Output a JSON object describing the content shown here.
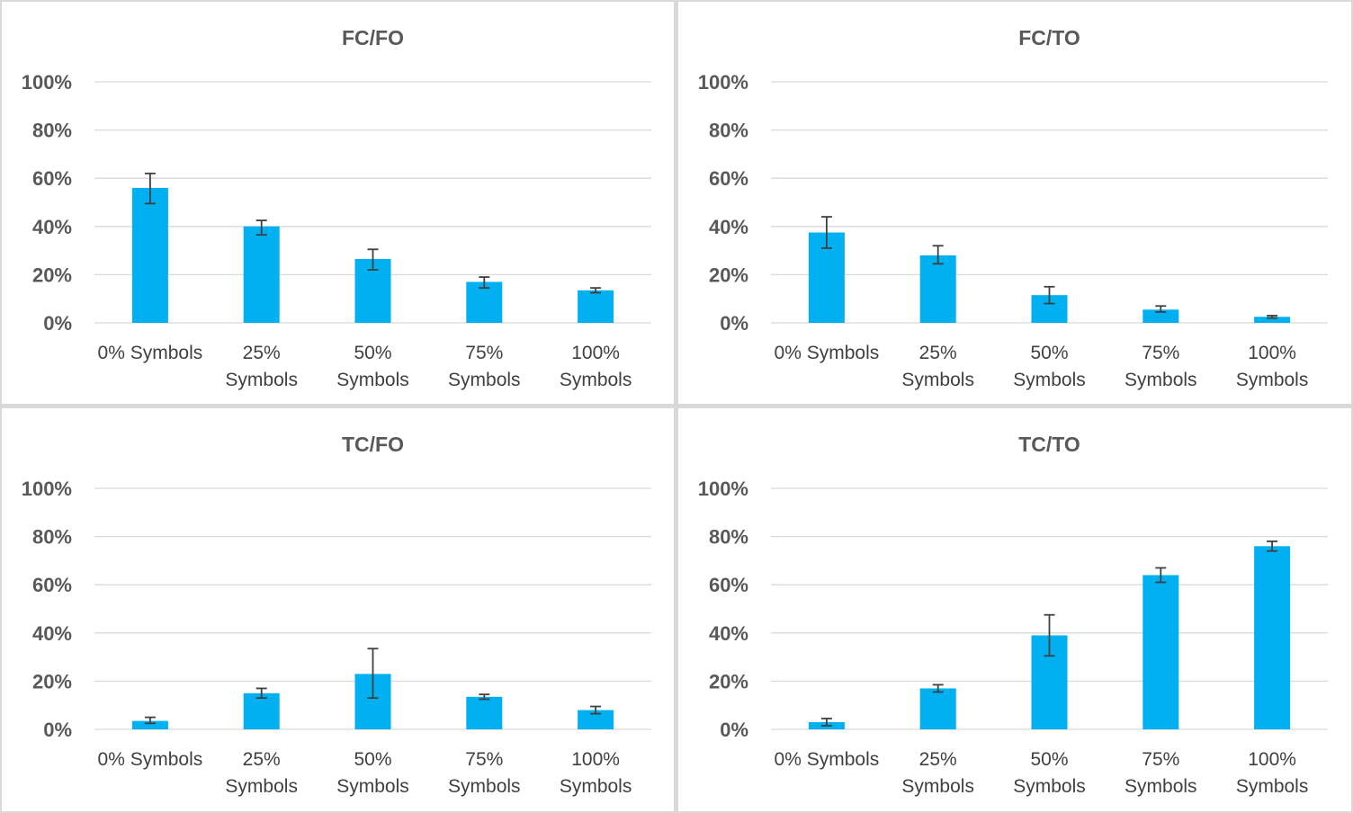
{
  "chart_data": [
    {
      "type": "bar",
      "title": "FC/FO",
      "categories": [
        "0% Symbols",
        "25% Symbols",
        "50% Symbols",
        "75% Symbols",
        "100% Symbols"
      ],
      "category_lines": [
        [
          "0% Symbols"
        ],
        [
          "25%",
          "Symbols"
        ],
        [
          "50%",
          "Symbols"
        ],
        [
          "75%",
          "Symbols"
        ],
        [
          "100%",
          "Symbols"
        ]
      ],
      "values": [
        56,
        40,
        26.5,
        17,
        13.5
      ],
      "error_low": [
        49.5,
        36.5,
        22,
        14.5,
        12.5
      ],
      "error_high": [
        62,
        42.5,
        30.5,
        19,
        14.5
      ],
      "ylim": [
        0,
        100
      ],
      "yticks": [
        "0%",
        "20%",
        "40%",
        "60%",
        "80%",
        "100%"
      ],
      "color": "#00B0F0",
      "grid": true
    },
    {
      "type": "bar",
      "title": "FC/TO",
      "categories": [
        "0% Symbols",
        "25% Symbols",
        "50% Symbols",
        "75% Symbols",
        "100% Symbols"
      ],
      "category_lines": [
        [
          "0% Symbols"
        ],
        [
          "25%",
          "Symbols"
        ],
        [
          "50%",
          "Symbols"
        ],
        [
          "75%",
          "Symbols"
        ],
        [
          "100%",
          "Symbols"
        ]
      ],
      "values": [
        37.5,
        28,
        11.5,
        5.5,
        2.5
      ],
      "error_low": [
        31,
        24.5,
        8,
        4.5,
        2
      ],
      "error_high": [
        44,
        32,
        15,
        7,
        3
      ],
      "ylim": [
        0,
        100
      ],
      "yticks": [
        "0%",
        "20%",
        "40%",
        "60%",
        "80%",
        "100%"
      ],
      "color": "#00B0F0",
      "grid": true
    },
    {
      "type": "bar",
      "title": "TC/FO",
      "categories": [
        "0% Symbols",
        "25% Symbols",
        "50% Symbols",
        "75% Symbols",
        "100% Symbols"
      ],
      "category_lines": [
        [
          "0% Symbols"
        ],
        [
          "25%",
          "Symbols"
        ],
        [
          "50%",
          "Symbols"
        ],
        [
          "75%",
          "Symbols"
        ],
        [
          "100%",
          "Symbols"
        ]
      ],
      "values": [
        3.5,
        15,
        23,
        13.5,
        8
      ],
      "error_low": [
        2.5,
        13,
        13,
        12.5,
        6.5
      ],
      "error_high": [
        5,
        17,
        33.5,
        14.5,
        9.5
      ],
      "ylim": [
        0,
        100
      ],
      "yticks": [
        "0%",
        "20%",
        "40%",
        "60%",
        "80%",
        "100%"
      ],
      "color": "#00B0F0",
      "grid": true
    },
    {
      "type": "bar",
      "title": "TC/TO",
      "categories": [
        "0% Symbols",
        "25% Symbols",
        "50% Symbols",
        "75% Symbols",
        "100% Symbols"
      ],
      "category_lines": [
        [
          "0% Symbols"
        ],
        [
          "25%",
          "Symbols"
        ],
        [
          "50%",
          "Symbols"
        ],
        [
          "75%",
          "Symbols"
        ],
        [
          "100%",
          "Symbols"
        ]
      ],
      "values": [
        3,
        17,
        39,
        64,
        76
      ],
      "error_low": [
        1.5,
        15.5,
        30.5,
        61,
        74
      ],
      "error_high": [
        4.5,
        18.5,
        47.5,
        67,
        78
      ],
      "ylim": [
        0,
        100
      ],
      "yticks": [
        "0%",
        "20%",
        "40%",
        "60%",
        "80%",
        "100%"
      ],
      "color": "#00B0F0",
      "grid": true
    }
  ]
}
